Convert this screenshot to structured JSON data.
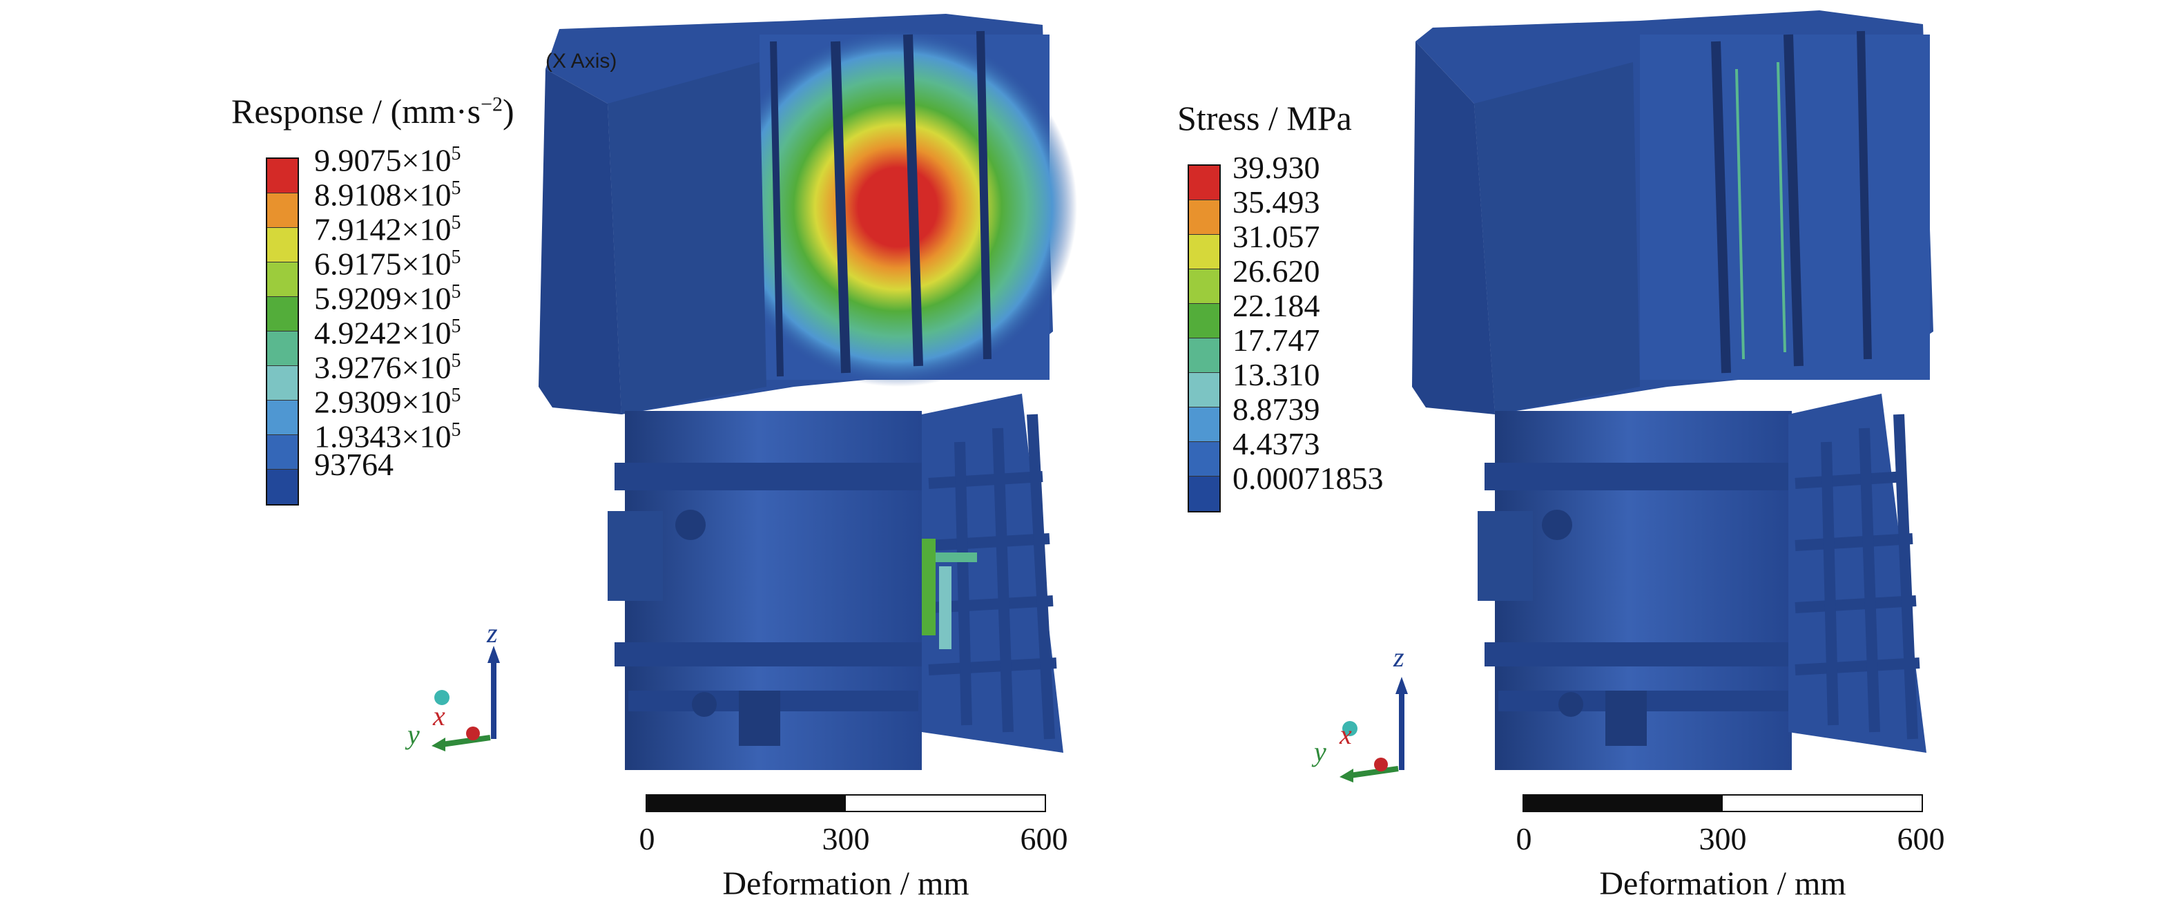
{
  "panels": [
    {
      "overlay_text": "(X Axis)",
      "legend": {
        "title_main": "Response / (mm·s",
        "title_sup": "−2",
        "title_tail": ")",
        "items": [
          {
            "mantissa": "9.9075×10",
            "exp": "5",
            "color": "#d42a27"
          },
          {
            "mantissa": "8.9108×10",
            "exp": "5",
            "color": "#e8922d"
          },
          {
            "mantissa": "7.9142×10",
            "exp": "5",
            "color": "#d6d83a"
          },
          {
            "mantissa": "6.9175×10",
            "exp": "5",
            "color": "#9ccc3c"
          },
          {
            "mantissa": "5.9209×10",
            "exp": "5",
            "color": "#53ad3a"
          },
          {
            "mantissa": "4.9242×10",
            "exp": "5",
            "color": "#5ab88f"
          },
          {
            "mantissa": "3.9276×10",
            "exp": "5",
            "color": "#7cc4c3"
          },
          {
            "mantissa": "2.9309×10",
            "exp": "5",
            "color": "#4f97d2"
          },
          {
            "mantissa": "1.9343×10",
            "exp": "5",
            "color": "#3467b8"
          },
          {
            "mantissa": "93764",
            "exp": "",
            "color": "#22489a"
          }
        ]
      },
      "axes": {
        "z": "z",
        "x": "x",
        "y": "y"
      },
      "scale": {
        "ticks": [
          "0",
          "300",
          "600"
        ],
        "caption": "Deformation / mm"
      }
    },
    {
      "overlay_text": "",
      "legend": {
        "title_main": "Stress / MPa",
        "title_sup": "",
        "title_tail": "",
        "items": [
          {
            "mantissa": "39.930",
            "exp": "",
            "color": "#d42a27"
          },
          {
            "mantissa": "35.493",
            "exp": "",
            "color": "#e8922d"
          },
          {
            "mantissa": "31.057",
            "exp": "",
            "color": "#d6d83a"
          },
          {
            "mantissa": "26.620",
            "exp": "",
            "color": "#9ccc3c"
          },
          {
            "mantissa": "22.184",
            "exp": "",
            "color": "#53ad3a"
          },
          {
            "mantissa": "17.747",
            "exp": "",
            "color": "#5ab88f"
          },
          {
            "mantissa": "13.310",
            "exp": "",
            "color": "#7cc4c3"
          },
          {
            "mantissa": "8.8739",
            "exp": "",
            "color": "#4f97d2"
          },
          {
            "mantissa": "4.4373",
            "exp": "",
            "color": "#3467b8"
          },
          {
            "mantissa": "0.00071853",
            "exp": "",
            "color": "#22489a"
          }
        ]
      },
      "axes": {
        "z": "z",
        "x": "x",
        "y": "y"
      },
      "scale": {
        "ticks": [
          "0",
          "300",
          "600"
        ],
        "caption": "Deformation / mm"
      }
    }
  ],
  "colors": {
    "structure": "#2b4f9c",
    "structure_dark": "#1f3b7a",
    "structure_light": "#3a62b3",
    "scale_black": "#0d0d0d",
    "axis_blue": "#1f3f8f",
    "axis_green": "#2f8a3a",
    "axis_red": "#c4262a",
    "axis_cyan": "#3cb6b0"
  }
}
